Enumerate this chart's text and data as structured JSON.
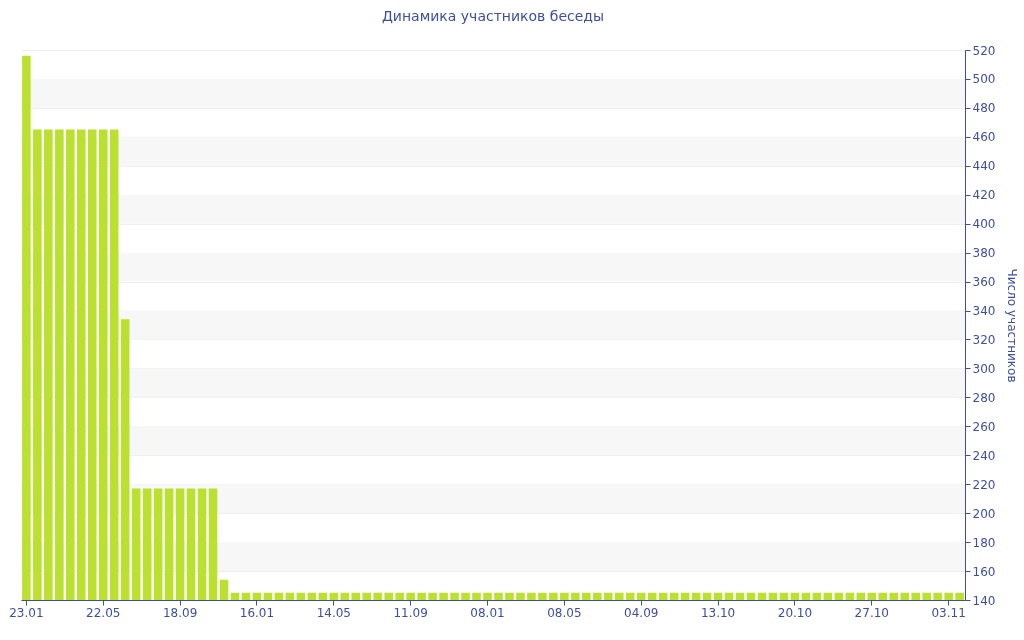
{
  "chart_data": {
    "type": "bar",
    "title": "Динамика участников беседы",
    "ylabel": "Число участников",
    "color": "#bbe02f",
    "categories": [
      "23.01",
      null,
      null,
      null,
      null,
      null,
      null,
      "22.05",
      null,
      null,
      null,
      null,
      null,
      null,
      "18.09",
      null,
      null,
      null,
      null,
      null,
      null,
      "16.01",
      null,
      null,
      null,
      null,
      null,
      null,
      "14.05",
      null,
      null,
      null,
      null,
      null,
      null,
      "11.09",
      null,
      null,
      null,
      null,
      null,
      null,
      "08.01",
      null,
      null,
      null,
      null,
      null,
      null,
      "08.05",
      null,
      null,
      null,
      null,
      null,
      null,
      "04.09",
      null,
      null,
      null,
      null,
      null,
      null,
      "13.10",
      null,
      null,
      null,
      null,
      null,
      null,
      "20.10",
      null,
      null,
      null,
      null,
      null,
      null,
      "27.10",
      null,
      null,
      null,
      null,
      null,
      null,
      "03.11",
      null
    ],
    "values": [
      516,
      465,
      465,
      465,
      465,
      465,
      465,
      465,
      465,
      334,
      217,
      217,
      217,
      217,
      217,
      217,
      217,
      217,
      154,
      145,
      145,
      145,
      145,
      145,
      145,
      145,
      145,
      145,
      145,
      145,
      145,
      145,
      145,
      145,
      145,
      145,
      145,
      145,
      145,
      145,
      145,
      145,
      145,
      145,
      145,
      145,
      145,
      145,
      145,
      145,
      145,
      145,
      145,
      145,
      145,
      145,
      145,
      145,
      145,
      145,
      145,
      145,
      145,
      145,
      145,
      145,
      145,
      145,
      145,
      145,
      145,
      145,
      145,
      145,
      145,
      145,
      145,
      145,
      145,
      145,
      145,
      145,
      145,
      145,
      145,
      145
    ],
    "ylim": [
      140,
      520
    ],
    "yticks": [
      140,
      160,
      180,
      200,
      220,
      240,
      260,
      280,
      300,
      320,
      340,
      360,
      380,
      400,
      420,
      440,
      460,
      480,
      500,
      520
    ],
    "grid": true
  }
}
